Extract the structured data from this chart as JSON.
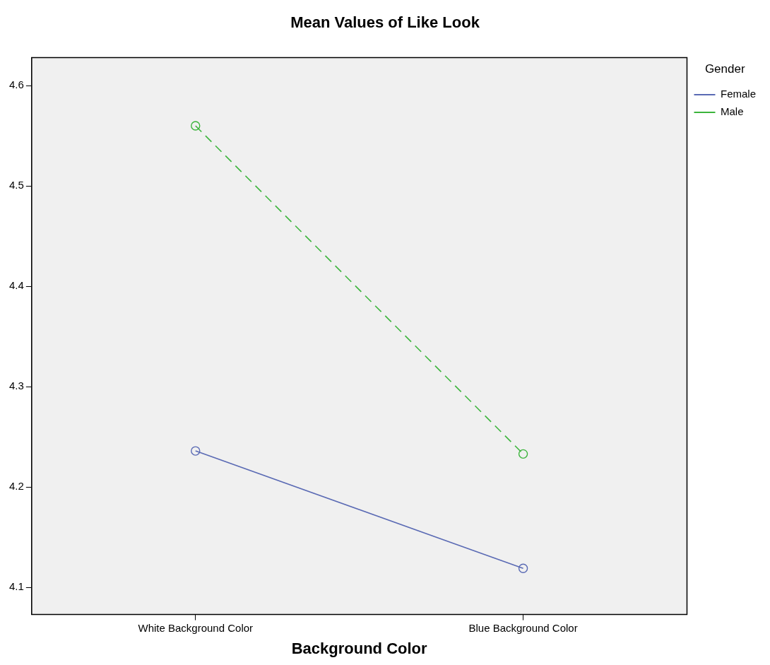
{
  "chart_data": {
    "type": "line",
    "title": "Mean Values of Like Look",
    "xlabel": "Background Color",
    "legend_title": "Gender",
    "categories": [
      "White Background Color",
      "Blue Background Color"
    ],
    "series": [
      {
        "name": "Female",
        "color": "#5a6ab4",
        "values": [
          4.236,
          4.119
        ],
        "line_style": "solid"
      },
      {
        "name": "Male",
        "color": "#3cb43c",
        "values": [
          4.56,
          4.233
        ],
        "line_style": "dashed"
      }
    ],
    "ylim": [
      4.073,
      4.628
    ],
    "yticks": [
      4.1,
      4.2,
      4.3,
      4.4,
      4.5,
      4.6
    ],
    "legend": "top right",
    "marker": "circle"
  }
}
